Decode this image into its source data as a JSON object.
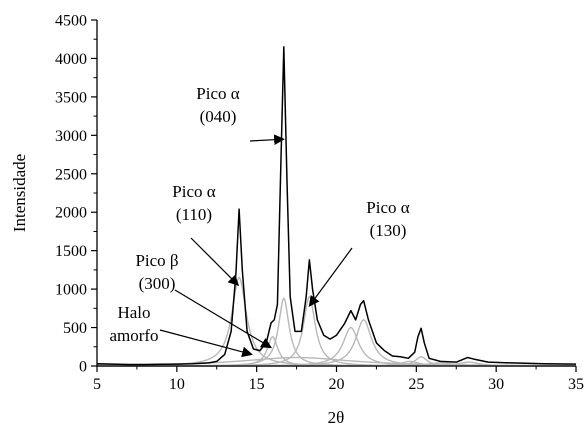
{
  "chart_data": {
    "type": "line",
    "xlabel": "2θ",
    "ylabel": "Intensidade",
    "xlim": [
      5,
      35
    ],
    "ylim": [
      0,
      4500
    ],
    "xticks": [
      5,
      10,
      15,
      20,
      25,
      30,
      35
    ],
    "yticks": [
      0,
      500,
      1000,
      1500,
      2000,
      2500,
      3000,
      3500,
      4000,
      4500
    ],
    "grid": false,
    "colors": {
      "total": "#000000",
      "components": "#b8b8b8"
    },
    "series": [
      {
        "role": "total",
        "points": [
          [
            5.0,
            30
          ],
          [
            6.0,
            25
          ],
          [
            7.0,
            20
          ],
          [
            8.0,
            20
          ],
          [
            9.0,
            22
          ],
          [
            10.0,
            25
          ],
          [
            11.0,
            30
          ],
          [
            12.0,
            40
          ],
          [
            12.5,
            60
          ],
          [
            13.0,
            150
          ],
          [
            13.4,
            450
          ],
          [
            13.7,
            1200
          ],
          [
            13.9,
            2040
          ],
          [
            14.1,
            1250
          ],
          [
            14.4,
            450
          ],
          [
            14.8,
            220
          ],
          [
            15.2,
            200
          ],
          [
            15.6,
            300
          ],
          [
            15.9,
            560
          ],
          [
            16.1,
            600
          ],
          [
            16.3,
            800
          ],
          [
            16.5,
            2500
          ],
          [
            16.7,
            4150
          ],
          [
            16.9,
            2400
          ],
          [
            17.1,
            900
          ],
          [
            17.4,
            450
          ],
          [
            17.8,
            450
          ],
          [
            18.1,
            900
          ],
          [
            18.3,
            1380
          ],
          [
            18.5,
            1000
          ],
          [
            18.8,
            600
          ],
          [
            19.2,
            400
          ],
          [
            19.6,
            350
          ],
          [
            20.0,
            400
          ],
          [
            20.5,
            550
          ],
          [
            20.9,
            720
          ],
          [
            21.2,
            600
          ],
          [
            21.5,
            800
          ],
          [
            21.7,
            850
          ],
          [
            22.0,
            600
          ],
          [
            22.5,
            300
          ],
          [
            23.0,
            200
          ],
          [
            23.5,
            130
          ],
          [
            24.0,
            120
          ],
          [
            24.5,
            100
          ],
          [
            24.9,
            180
          ],
          [
            25.1,
            380
          ],
          [
            25.3,
            490
          ],
          [
            25.5,
            300
          ],
          [
            25.8,
            100
          ],
          [
            26.5,
            60
          ],
          [
            27.5,
            50
          ],
          [
            28.2,
            110
          ],
          [
            28.6,
            90
          ],
          [
            29.5,
            50
          ],
          [
            31.0,
            40
          ],
          [
            33.0,
            30
          ],
          [
            35.0,
            25
          ]
        ]
      },
      {
        "role": "component",
        "name": "Halo amorfo",
        "center": 17.5,
        "height": 110,
        "width": 4.2
      },
      {
        "role": "component",
        "name": "Pico α (110)",
        "center": 13.9,
        "height": 1150,
        "width": 0.55
      },
      {
        "role": "component",
        "name": "Pico β (300)",
        "center": 16.0,
        "height": 380,
        "width": 0.4
      },
      {
        "role": "component",
        "name": "Pico α (040)",
        "center": 16.7,
        "height": 880,
        "width": 0.4
      },
      {
        "role": "component",
        "name": "Pico α (130)",
        "center": 18.3,
        "height": 900,
        "width": 0.45
      },
      {
        "role": "component",
        "center": 20.9,
        "height": 500,
        "width": 0.6
      },
      {
        "role": "component",
        "center": 21.7,
        "height": 600,
        "width": 0.6
      },
      {
        "role": "component",
        "center": 24.6,
        "height": 60,
        "width": 0.7
      },
      {
        "role": "component",
        "center": 25.3,
        "height": 120,
        "width": 0.45
      },
      {
        "role": "component",
        "center": 26.5,
        "height": 40,
        "width": 1.0
      },
      {
        "role": "component",
        "center": 28.3,
        "height": 50,
        "width": 0.8
      }
    ],
    "annotations": [
      {
        "id": "a040",
        "lines": [
          "Pico α",
          "(040)"
        ],
        "target": [
          16.7,
          2950
        ]
      },
      {
        "id": "a110",
        "lines": [
          "Pico α",
          "(110)"
        ],
        "target": [
          13.85,
          1050
        ]
      },
      {
        "id": "a130",
        "lines": [
          "Pico α",
          "(130)"
        ],
        "target": [
          18.3,
          780
        ]
      },
      {
        "id": "b300",
        "lines": [
          "Pico β",
          "(300)"
        ],
        "target": [
          15.9,
          240
        ]
      },
      {
        "id": "halo",
        "lines": [
          "Halo",
          "amorfo"
        ],
        "target": [
          14.7,
          150
        ]
      }
    ]
  }
}
